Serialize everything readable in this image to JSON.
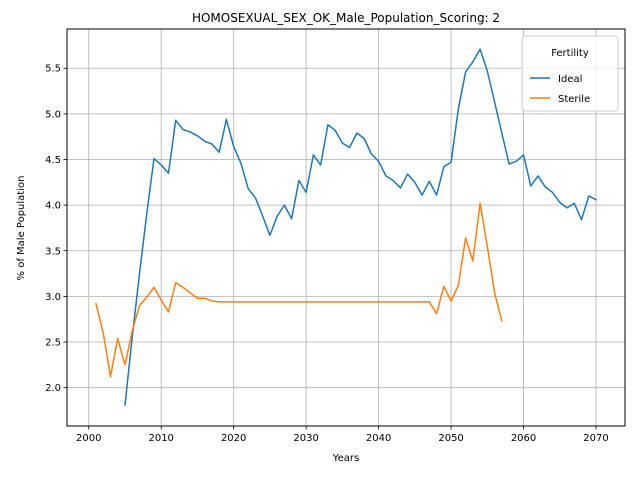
{
  "chart_data": {
    "type": "line",
    "title": "HOMOSEXUAL_SEX_OK_Male_Population_Scoring: 2",
    "xlabel": "Years",
    "ylabel": "% of Male Population",
    "xlim": [
      1997,
      2074
    ],
    "ylim": [
      1.58,
      5.93
    ],
    "xticks": [
      2000,
      2010,
      2020,
      2030,
      2040,
      2050,
      2060,
      2070
    ],
    "yticks": [
      2.0,
      2.5,
      3.0,
      3.5,
      4.0,
      4.5,
      5.0,
      5.5
    ],
    "ytick_labels": [
      "2.0",
      "2.5",
      "3.0",
      "3.5",
      "4.0",
      "4.5",
      "5.0",
      "5.5"
    ],
    "grid": true,
    "legend": {
      "title": "Fertility",
      "placement": "upper right"
    },
    "series": [
      {
        "name": "Ideal",
        "color": "#1f77b4",
        "x": [
          2005,
          2006,
          2007,
          2008,
          2009,
          2010,
          2011,
          2012,
          2013,
          2014,
          2015,
          2016,
          2017,
          2018,
          2019,
          2020,
          2021,
          2022,
          2023,
          2024,
          2025,
          2026,
          2027,
          2028,
          2029,
          2030,
          2031,
          2032,
          2033,
          2034,
          2035,
          2036,
          2037,
          2038,
          2039,
          2040,
          2041,
          2042,
          2043,
          2044,
          2045,
          2046,
          2047,
          2048,
          2049,
          2050,
          2051,
          2052,
          2053,
          2054,
          2055,
          2056,
          2057,
          2058,
          2059,
          2060,
          2061,
          2062,
          2063,
          2064,
          2065,
          2066,
          2067,
          2068,
          2069,
          2070
        ],
        "y": [
          1.81,
          2.55,
          3.25,
          3.9,
          4.51,
          4.44,
          4.35,
          4.93,
          4.83,
          4.8,
          4.76,
          4.7,
          4.67,
          4.58,
          4.94,
          4.64,
          4.46,
          4.18,
          4.08,
          3.88,
          3.67,
          3.88,
          4.0,
          3.85,
          4.27,
          4.14,
          4.55,
          4.44,
          4.88,
          4.82,
          4.68,
          4.63,
          4.79,
          4.73,
          4.56,
          4.48,
          4.32,
          4.27,
          4.19,
          4.34,
          4.25,
          4.11,
          4.26,
          4.11,
          4.42,
          4.47,
          5.05,
          5.46,
          5.57,
          5.71,
          5.47,
          5.13,
          4.79,
          4.45,
          4.48,
          4.55,
          4.21,
          4.32,
          4.2,
          4.14,
          4.03,
          3.97,
          4.02,
          3.84,
          4.1,
          4.06
        ]
      },
      {
        "name": "Sterile",
        "color": "#ff7f0e",
        "x": [
          2001,
          2002,
          2003,
          2004,
          2005,
          2006,
          2007,
          2008,
          2009,
          2010,
          2011,
          2012,
          2013,
          2014,
          2015,
          2016,
          2017,
          2018,
          2019,
          2020,
          2021,
          2022,
          2023,
          2024,
          2025,
          2026,
          2027,
          2028,
          2029,
          2030,
          2031,
          2032,
          2033,
          2034,
          2035,
          2036,
          2037,
          2038,
          2039,
          2040,
          2041,
          2042,
          2043,
          2044,
          2045,
          2046,
          2047,
          2048,
          2049,
          2050,
          2051,
          2052,
          2053,
          2054,
          2055,
          2056,
          2057
        ],
        "y": [
          2.92,
          2.6,
          2.12,
          2.54,
          2.25,
          2.62,
          2.9,
          2.99,
          3.1,
          2.96,
          2.83,
          3.15,
          3.1,
          3.04,
          2.98,
          2.98,
          2.95,
          2.94,
          2.94,
          2.94,
          2.94,
          2.94,
          2.94,
          2.94,
          2.94,
          2.94,
          2.94,
          2.94,
          2.94,
          2.94,
          2.94,
          2.94,
          2.94,
          2.94,
          2.94,
          2.94,
          2.94,
          2.94,
          2.94,
          2.94,
          2.94,
          2.94,
          2.94,
          2.94,
          2.94,
          2.94,
          2.94,
          2.81,
          3.11,
          2.95,
          3.12,
          3.64,
          3.39,
          4.02,
          3.55,
          3.04,
          2.73
        ]
      }
    ]
  }
}
